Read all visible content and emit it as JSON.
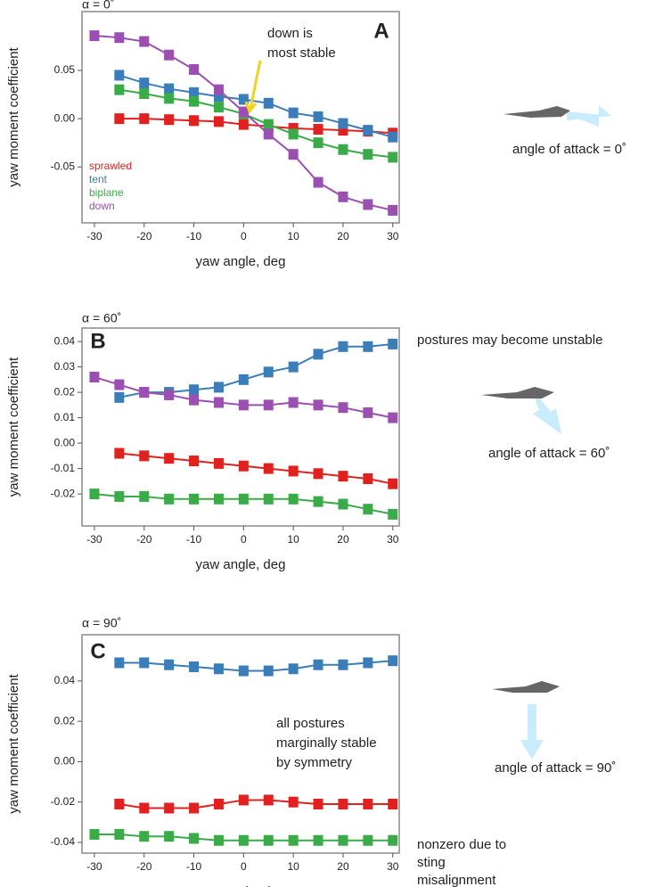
{
  "chart_data": [
    {
      "type": "line",
      "title": "α = 0˚",
      "panel_label": "A",
      "annotation": [
        "down is",
        "most stable"
      ],
      "aoa_label": "angle of attack = 0˚",
      "x_label": "yaw angle, deg",
      "y_label": "yaw moment coefficient",
      "x": [
        -30,
        -25,
        -20,
        -15,
        -10,
        -5,
        0,
        5,
        10,
        15,
        20,
        25,
        30
      ],
      "xlim": [
        -32.5,
        31.3
      ],
      "xticks": [
        -30,
        -20,
        -10,
        0,
        10,
        20,
        30
      ],
      "ylim": [
        -0.108,
        0.111
      ],
      "yticks": [
        0.05,
        {
          "value": 0,
          "label": "0.00"
        },
        -0.05
      ],
      "series": [
        {
          "name": "sprawled",
          "color": "#e0211f",
          "values": [
            null,
            0.0,
            0.0,
            -0.001,
            -0.002,
            -0.003,
            -0.006,
            -0.008,
            -0.01,
            -0.011,
            -0.012,
            -0.013,
            -0.015
          ]
        },
        {
          "name": "tent",
          "color": "#3a7db8",
          "values": [
            null,
            0.045,
            0.037,
            0.031,
            0.027,
            0.023,
            0.02,
            0.016,
            0.006,
            0.002,
            -0.005,
            -0.012,
            -0.019
          ]
        },
        {
          "name": "biplane",
          "color": "#3aab48",
          "values": [
            null,
            0.03,
            0.026,
            0.021,
            0.018,
            0.012,
            0.005,
            -0.006,
            -0.016,
            -0.025,
            -0.032,
            -0.037,
            -0.04
          ]
        },
        {
          "name": "down",
          "color": "#9b4fb0",
          "values": [
            0.086,
            0.084,
            0.08,
            0.066,
            0.051,
            0.03,
            0.007,
            -0.016,
            -0.037,
            -0.066,
            -0.081,
            -0.089,
            -0.095
          ]
        }
      ]
    },
    {
      "type": "line",
      "title": "α = 60˚",
      "panel_label": "B",
      "side_note": [
        "postures may become unstable"
      ],
      "aoa_label": "angle of attack = 60˚",
      "x_label": "yaw angle, deg",
      "y_label": "yaw moment coefficient",
      "x": [
        -30,
        -25,
        -20,
        -15,
        -10,
        -5,
        0,
        5,
        10,
        15,
        20,
        25,
        30
      ],
      "xlim": [
        -32.5,
        31.3
      ],
      "xticks": [
        -30,
        -20,
        -10,
        0,
        10,
        20,
        30
      ],
      "ylim": [
        -0.0326,
        0.0453
      ],
      "yticks": [
        0.04,
        0.03,
        0.02,
        0.01,
        {
          "value": 0,
          "label": "0.00"
        },
        -0.01,
        -0.02
      ],
      "series": [
        {
          "color": "#e0211f",
          "values": [
            null,
            -0.004,
            -0.005,
            -0.006,
            -0.007,
            -0.008,
            -0.009,
            -0.01,
            -0.011,
            -0.012,
            -0.013,
            -0.014,
            -0.016
          ]
        },
        {
          "color": "#3a7db8",
          "values": [
            null,
            0.018,
            0.02,
            0.02,
            0.021,
            0.022,
            0.025,
            0.028,
            0.03,
            0.035,
            0.038,
            0.038,
            0.039
          ]
        },
        {
          "color": "#3aab48",
          "values": [
            -0.02,
            -0.021,
            -0.021,
            -0.022,
            -0.022,
            -0.022,
            -0.022,
            -0.022,
            -0.022,
            -0.023,
            -0.024,
            -0.026,
            -0.028
          ]
        },
        {
          "color": "#9b4fb0",
          "values": [
            0.026,
            0.023,
            0.02,
            0.019,
            0.017,
            0.016,
            0.015,
            0.015,
            0.016,
            0.015,
            0.014,
            0.012,
            0.01
          ]
        }
      ]
    },
    {
      "type": "line",
      "title": "α = 90˚",
      "panel_label": "C",
      "annotation": [
        "all postures",
        "marginally stable",
        "by symmetry"
      ],
      "side_note": [
        "nonzero due to",
        "sting",
        "misalignment"
      ],
      "aoa_label": "angle of attack = 90˚",
      "x_label": "yaw angle, deg",
      "y_label": "yaw moment coefficient",
      "x": [
        -30,
        -25,
        -20,
        -15,
        -10,
        -5,
        0,
        5,
        10,
        15,
        20,
        25,
        30
      ],
      "xlim": [
        -32.5,
        31.3
      ],
      "xticks": [
        -30,
        -20,
        -10,
        0,
        10,
        20,
        30
      ],
      "ylim": [
        -0.0453,
        0.0629
      ],
      "yticks": [
        0.04,
        0.02,
        {
          "value": 0,
          "label": "0.00"
        },
        -0.02,
        -0.04
      ],
      "series": [
        {
          "color": "#e0211f",
          "values": [
            null,
            -0.021,
            -0.023,
            -0.023,
            -0.023,
            -0.021,
            -0.019,
            -0.019,
            -0.02,
            -0.021,
            -0.021,
            -0.021,
            -0.021
          ]
        },
        {
          "color": "#3a7db8",
          "values": [
            null,
            0.049,
            0.049,
            0.048,
            0.047,
            0.046,
            0.045,
            0.045,
            0.046,
            0.048,
            0.048,
            0.049,
            0.05
          ]
        },
        {
          "color": "#3aab48",
          "values": [
            -0.036,
            -0.036,
            -0.037,
            -0.037,
            -0.038,
            -0.039,
            -0.039,
            -0.039,
            -0.039,
            -0.039,
            -0.039,
            -0.039,
            -0.039
          ]
        }
      ]
    }
  ]
}
